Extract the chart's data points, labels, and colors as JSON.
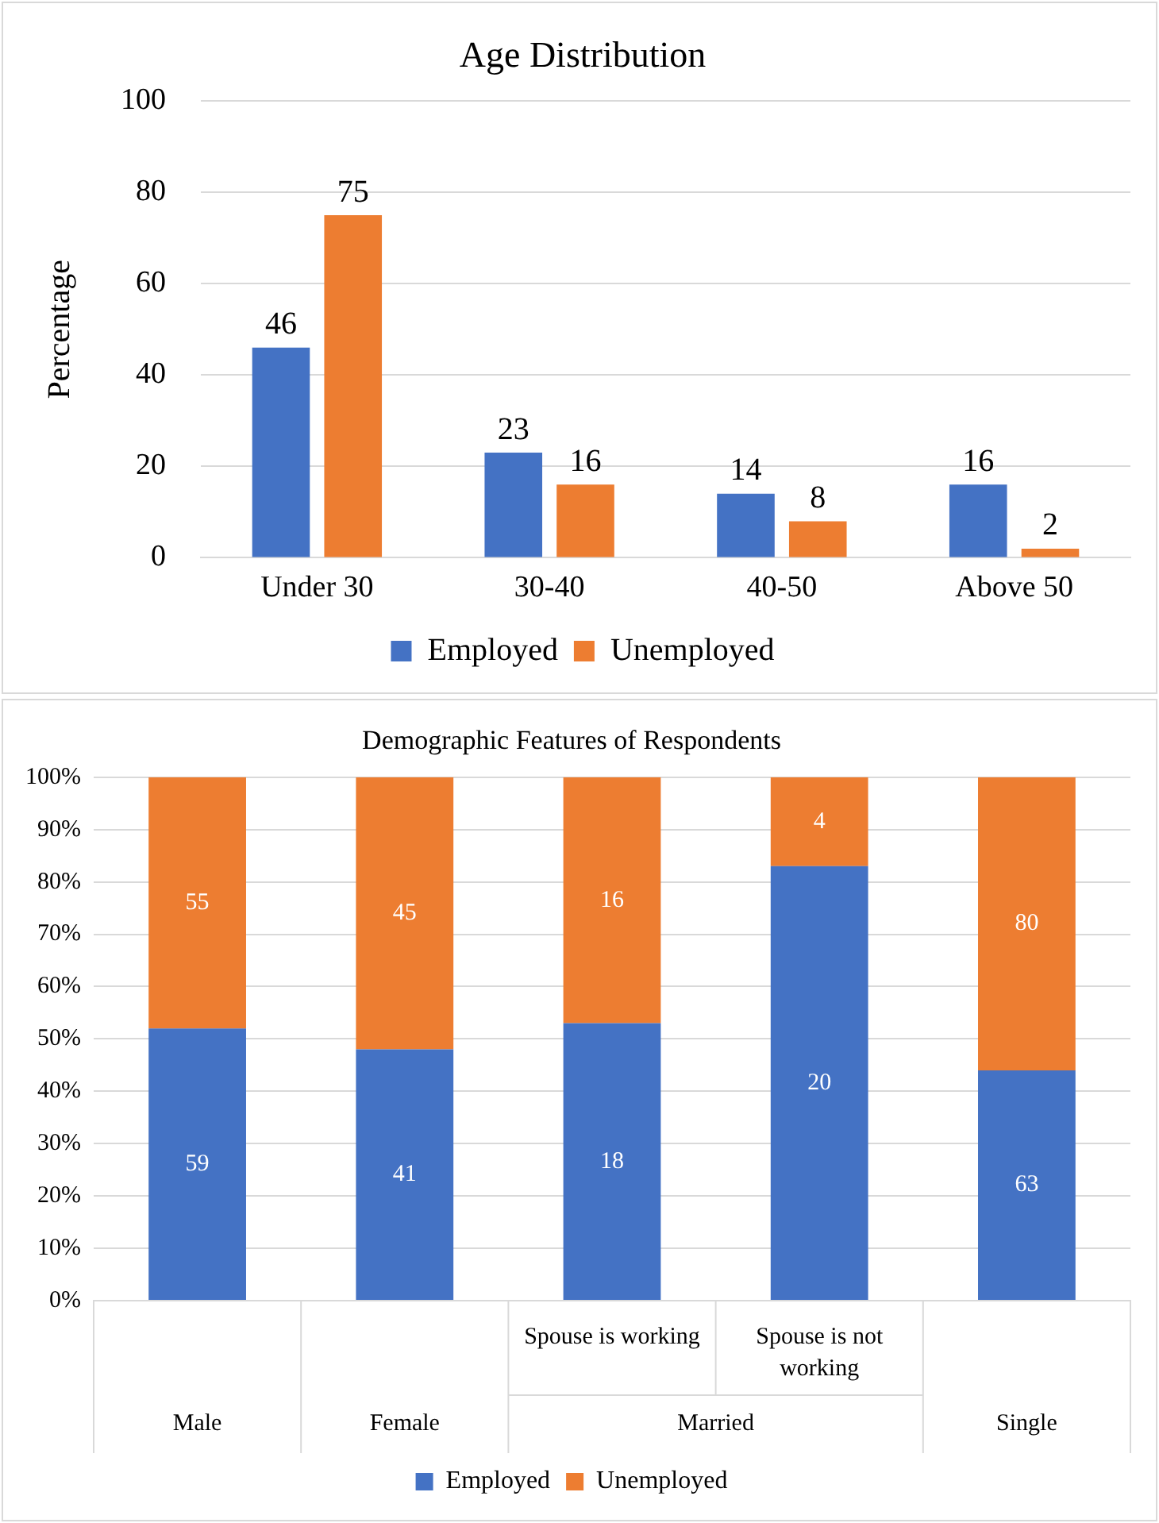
{
  "chart_data": [
    {
      "type": "bar",
      "title": "Age Distribution",
      "ylabel": "Percentage",
      "categories": [
        "Under 30",
        "30-40",
        "40-50",
        "Above 50"
      ],
      "series": [
        {
          "name": "Employed",
          "color": "#4472c4",
          "values": [
            46,
            23,
            14,
            16
          ]
        },
        {
          "name": "Unemployed",
          "color": "#ed7d31",
          "values": [
            75,
            16,
            8,
            2
          ]
        }
      ],
      "ylim": [
        0,
        100
      ],
      "yticks": [
        0,
        20,
        40,
        60,
        80,
        100
      ],
      "grid": "y",
      "legend": "bottom",
      "data_labels": true
    },
    {
      "type": "bar",
      "title": "Demographic Features of Respondents",
      "stacked": true,
      "categories": [
        "Male",
        "Female",
        "Spouse is working",
        "Spouse is not working",
        "Single"
      ],
      "annotations": [
        "Married",
        "59",
        "41",
        "18",
        "20",
        "63",
        "55",
        "45",
        "16",
        "4",
        "80"
      ],
      "series": [
        {
          "name": "Employed",
          "color": "#4472c4",
          "values": [
            52,
            48,
            53,
            83,
            44
          ]
        },
        {
          "name": "Unemployed",
          "color": "#ed7d31",
          "values": [
            48,
            52,
            47,
            17,
            56
          ]
        }
      ],
      "ylim": [
        0,
        100
      ],
      "yticks": [
        {
          "value": 0,
          "label": "0%"
        },
        {
          "value": 10,
          "label": "10%"
        },
        {
          "value": 20,
          "label": "20%"
        },
        {
          "value": 30,
          "label": "30%"
        },
        {
          "value": 40,
          "label": "40%"
        },
        {
          "value": 50,
          "label": "50%"
        },
        {
          "value": 60,
          "label": "60%"
        },
        {
          "value": 70,
          "label": "70%"
        },
        {
          "value": 80,
          "label": "80%"
        },
        {
          "value": 90,
          "label": "90%"
        },
        {
          "value": 100,
          "label": "100%"
        }
      ],
      "grid": "y",
      "legend": "bottom"
    }
  ]
}
